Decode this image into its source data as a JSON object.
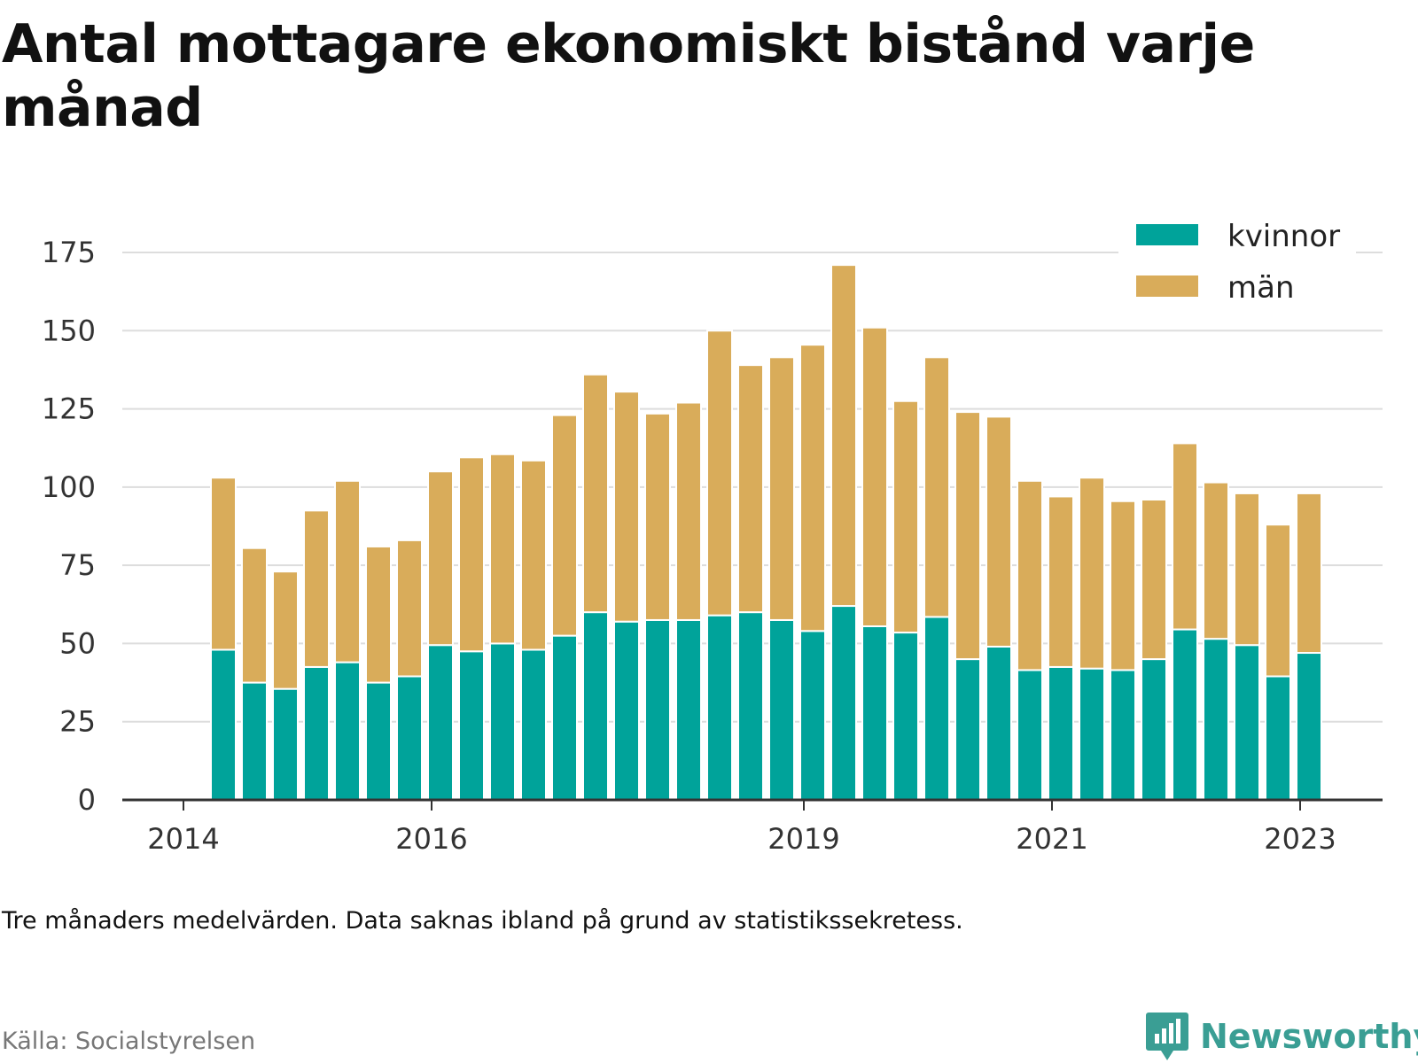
{
  "title": "Antal mottagare ekonomiskt bistånd varje månad",
  "footnote": "Tre månaders medelvärden. Data saknas ibland på grund av statistikssekretess.",
  "source": "Källa: Socialstyrelsen",
  "logo": {
    "text": "Newsworthy",
    "icon": "bar-chart-speech-bubble-icon",
    "color": "#3a9e94"
  },
  "colors": {
    "kvinnor": "#00a39a",
    "man": "#d9ac5a",
    "grid": "#dddddd",
    "axis": "#333333"
  },
  "chart_data": {
    "type": "bar",
    "stacked": true,
    "title": "Antal mottagare ekonomiskt bistånd varje månad",
    "xlabel": "",
    "ylabel": "",
    "ylim": [
      0,
      175
    ],
    "yticks": [
      0,
      25,
      50,
      75,
      100,
      125,
      150,
      175
    ],
    "xtick_labels": [
      {
        "label": "2014",
        "at": 0
      },
      {
        "label": "2016",
        "at": 8
      },
      {
        "label": "2019",
        "at": 20
      },
      {
        "label": "2021",
        "at": 28
      },
      {
        "label": "2023",
        "at": 36
      }
    ],
    "legend_position": "top-right",
    "grid": true,
    "series": [
      {
        "name": "kvinnor",
        "color": "#00a39a",
        "values": [
          48,
          37.5,
          35.5,
          42.5,
          44,
          37.5,
          39.5,
          49.5,
          47.5,
          50,
          48,
          52.5,
          60,
          57,
          57.5,
          57.5,
          59,
          60,
          57.5,
          54,
          62,
          55.5,
          53.5,
          58.5,
          45,
          49,
          41.5,
          42.5,
          42,
          41.5,
          45,
          54.5,
          51.5,
          49.5,
          39.5,
          47
        ]
      },
      {
        "name": "män",
        "color": "#d9ac5a",
        "values": [
          55,
          43,
          37.5,
          50,
          58,
          43.5,
          43.5,
          55.5,
          62,
          60.5,
          60.5,
          70.5,
          76,
          73.5,
          66,
          69.5,
          91,
          79,
          84,
          91.5,
          109,
          95.5,
          74,
          83,
          79,
          73.5,
          60.5,
          54.5,
          61,
          54,
          51,
          59.5,
          50,
          48.5,
          48.5,
          51
        ]
      }
    ]
  }
}
